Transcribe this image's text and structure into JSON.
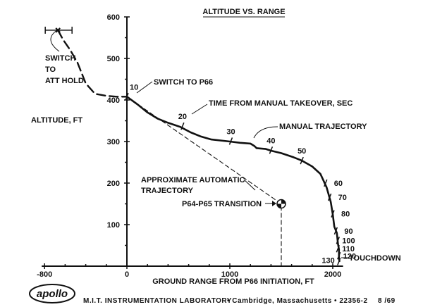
{
  "chart_data": {
    "type": "line",
    "title": "ALTITUDE VS. RANGE",
    "xlabel": "GROUND RANGE FROM P66 INITIATION,  FT",
    "ylabel": "ALTITUDE,  FT",
    "xlim": [
      -800,
      2100
    ],
    "ylim": [
      0,
      600
    ],
    "xticks": [
      -800,
      0,
      1000,
      2000
    ],
    "yticks": [
      100,
      200,
      300,
      400,
      500,
      600
    ],
    "series": [
      {
        "name": "MANUAL TRAJECTORY",
        "style": "solid",
        "points": [
          [
            0,
            408
          ],
          [
            100,
            390
          ],
          [
            200,
            370
          ],
          [
            300,
            355
          ],
          [
            400,
            345
          ],
          [
            520,
            335
          ],
          [
            620,
            322
          ],
          [
            720,
            312
          ],
          [
            820,
            305
          ],
          [
            1000,
            300
          ],
          [
            1100,
            297
          ],
          [
            1200,
            295
          ],
          [
            1240,
            289
          ],
          [
            1260,
            284
          ],
          [
            1350,
            282
          ],
          [
            1400,
            278
          ],
          [
            1500,
            272
          ],
          [
            1620,
            262
          ],
          [
            1700,
            254
          ],
          [
            1800,
            240
          ],
          [
            1880,
            222
          ],
          [
            1940,
            190
          ],
          [
            1980,
            155
          ],
          [
            2000,
            125
          ],
          [
            2015,
            95
          ],
          [
            2040,
            80
          ],
          [
            2050,
            55
          ],
          [
            2060,
            40
          ],
          [
            2060,
            20
          ],
          [
            2065,
            12
          ]
        ],
        "time_marks": [
          {
            "label": "10",
            "x": 0,
            "y": 408
          },
          {
            "label": "20",
            "x": 540,
            "y": 337
          },
          {
            "label": "30",
            "x": 1010,
            "y": 301
          },
          {
            "label": "40",
            "x": 1400,
            "y": 279
          },
          {
            "label": "50",
            "x": 1700,
            "y": 254
          },
          {
            "label": "60",
            "x": 1930,
            "y": 200
          },
          {
            "label": "70",
            "x": 1970,
            "y": 166
          },
          {
            "label": "80",
            "x": 2000,
            "y": 126
          },
          {
            "label": "90",
            "x": 2030,
            "y": 85
          },
          {
            "label": "100",
            "x": 2050,
            "y": 62
          },
          {
            "label": "110",
            "x": 2050,
            "y": 42
          },
          {
            "label": "120",
            "x": 2060,
            "y": 25
          },
          {
            "label": "130",
            "x": 2060,
            "y": 11
          }
        ]
      },
      {
        "name": "APPROXIMATE AUTOMATIC TRAJECTORY",
        "style": "dashed",
        "points": [
          [
            0,
            408
          ],
          [
            1500,
            150
          ],
          [
            1500,
            0
          ]
        ]
      },
      {
        "name": "ATT HOLD",
        "style": "dashed-long",
        "points": [
          [
            -670,
            568
          ],
          [
            -620,
            545
          ],
          [
            -550,
            520
          ],
          [
            -480,
            490
          ],
          [
            -400,
            440
          ],
          [
            -310,
            415
          ],
          [
            -200,
            410
          ],
          [
            -100,
            408
          ],
          [
            0,
            408
          ]
        ]
      }
    ],
    "annotations": {
      "switch_att_hold": "SWITCH\nTO\nATT HOLD",
      "switch_p66": "SWITCH TO P66",
      "time_label": "TIME FROM MANUAL TAKEOVER,  SEC",
      "manual": "MANUAL TRAJECTORY",
      "automatic": "APPROXIMATE AUTOMATIC\nTRAJECTORY",
      "p64_p65": "P64-P65 TRANSITION",
      "touchdown": "TOUCHDOWN"
    },
    "start_point": {
      "x": -670,
      "y": 568
    },
    "transition_point": {
      "x": 1500,
      "y": 150
    },
    "grid": false
  },
  "footer": {
    "logo": "apollo",
    "lab": "M.I.T. INSTRUMENTATION LABORATORY",
    "location": "• Cambridge, Massachusetts • 22356-2",
    "page": "8 /69"
  }
}
